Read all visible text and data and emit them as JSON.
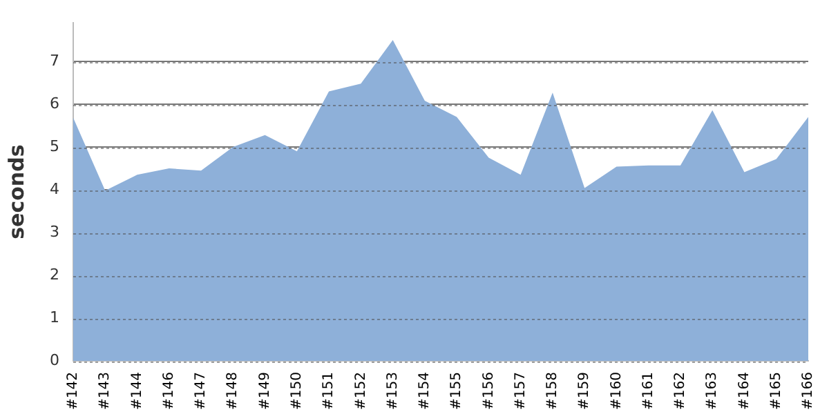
{
  "chart_data": {
    "type": "area",
    "ylabel": "seconds",
    "categories": [
      "#142",
      "#143",
      "#144",
      "#146",
      "#147",
      "#148",
      "#149",
      "#150",
      "#151",
      "#152",
      "#153",
      "#154",
      "#155",
      "#156",
      "#157",
      "#158",
      "#159",
      "#160",
      "#161",
      "#162",
      "#163",
      "#164",
      "#165",
      "#166"
    ],
    "series": [
      {
        "color": "#8eb0d9",
        "values": [
          5.68,
          3.98,
          4.35,
          4.5,
          4.45,
          5.0,
          5.28,
          4.9,
          6.3,
          6.48,
          7.5,
          6.08,
          5.7,
          4.75,
          4.35,
          6.27,
          4.04,
          4.54,
          4.57,
          4.57,
          5.86,
          4.41,
          4.72,
          5.7
        ]
      }
    ],
    "ylim": [
      0,
      7.9
    ],
    "yticks": [
      0,
      1,
      2,
      3,
      4,
      5,
      6,
      7
    ],
    "grid": "y",
    "legend": false,
    "marker": "none"
  }
}
